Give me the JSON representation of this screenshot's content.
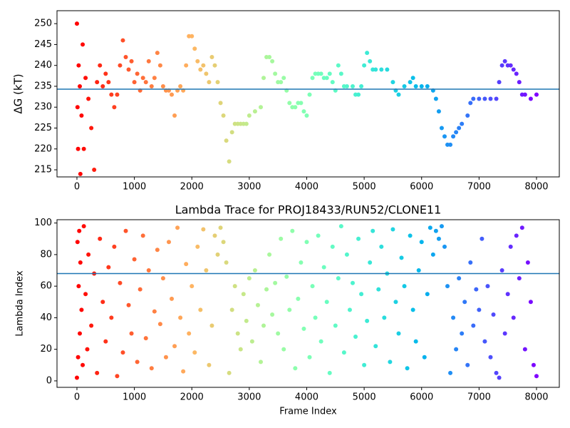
{
  "chart_data": [
    {
      "type": "scatter",
      "ylabel": "ΔG (kT)",
      "colormap": "rainbow_r",
      "hline": 234.3,
      "hline_color": "#1f77b4",
      "xlim": [
        -347,
        8397
      ],
      "ylim": [
        213.3,
        253.1
      ],
      "xticks": [
        0,
        1000,
        2000,
        3000,
        4000,
        5000,
        6000,
        7000,
        8000
      ],
      "yticks": [
        215,
        220,
        225,
        230,
        235,
        240,
        245,
        250
      ],
      "x": [
        0,
        10,
        20,
        30,
        50,
        60,
        80,
        100,
        120,
        150,
        200,
        250,
        300,
        350,
        400,
        450,
        500,
        550,
        600,
        650,
        700,
        750,
        800,
        850,
        900,
        950,
        1000,
        1050,
        1100,
        1150,
        1200,
        1250,
        1300,
        1350,
        1400,
        1450,
        1500,
        1550,
        1600,
        1650,
        1700,
        1750,
        1800,
        1850,
        1900,
        1950,
        2000,
        2050,
        2100,
        2150,
        2200,
        2250,
        2300,
        2350,
        2400,
        2450,
        2500,
        2550,
        2600,
        2650,
        2700,
        2750,
        2800,
        2850,
        2900,
        2950,
        3000,
        3100,
        3200,
        3250,
        3300,
        3350,
        3400,
        3450,
        3500,
        3550,
        3600,
        3650,
        3700,
        3750,
        3800,
        3850,
        3900,
        3950,
        4000,
        4050,
        4100,
        4150,
        4200,
        4250,
        4300,
        4350,
        4400,
        4450,
        4500,
        4550,
        4600,
        4650,
        4700,
        4800,
        4850,
        4900,
        4950,
        5000,
        5050,
        5100,
        5150,
        5200,
        5300,
        5400,
        5500,
        5550,
        5600,
        5700,
        5800,
        5850,
        5900,
        6000,
        6100,
        6200,
        6250,
        6300,
        6350,
        6400,
        6450,
        6500,
        6550,
        6600,
        6650,
        6700,
        6800,
        6850,
        6900,
        7000,
        7100,
        7200,
        7300,
        7350,
        7400,
        7450,
        7500,
        7550,
        7600,
        7650,
        7700,
        7750,
        7800,
        7900,
        8000
      ],
      "values": [
        250,
        230,
        220,
        240,
        235,
        214,
        228,
        245,
        220,
        237,
        232,
        225,
        215,
        236,
        240,
        235,
        238,
        236,
        233,
        230,
        233,
        240,
        246,
        242,
        239,
        241,
        236,
        238,
        234,
        237,
        236,
        241,
        235,
        237,
        243,
        240,
        235,
        234,
        234,
        233,
        228,
        234,
        235,
        234,
        240,
        247,
        247,
        244,
        241,
        239,
        240,
        238,
        236,
        242,
        240,
        236,
        231,
        228,
        222,
        217,
        224,
        226,
        226,
        226,
        226,
        226,
        228,
        229,
        230,
        237,
        242,
        242,
        241,
        238,
        236,
        236,
        237,
        234,
        231,
        230,
        230,
        231,
        231,
        229,
        228,
        233,
        237,
        238,
        238,
        238,
        237,
        237,
        238,
        236,
        234,
        240,
        238,
        235,
        235,
        235,
        233,
        233,
        235,
        240,
        243,
        241,
        239,
        239,
        239,
        239,
        236,
        234,
        233,
        235,
        236,
        237,
        235,
        235,
        235,
        234,
        232,
        229,
        225,
        223,
        221,
        221,
        223,
        224,
        225,
        226,
        228,
        231,
        232,
        232,
        232,
        232,
        232,
        236,
        240,
        241,
        240,
        240,
        239,
        238,
        236,
        233,
        233,
        232,
        233
      ]
    },
    {
      "type": "scatter",
      "title": "Lambda Trace for PROJ18433/RUN52/CLONE11",
      "xlabel": "Frame Index",
      "ylabel": "Lambda Index",
      "colormap": "rainbow_r",
      "hline": 68,
      "hline_color": "#1f77b4",
      "xlim": [
        -347,
        8397
      ],
      "ylim": [
        -4.1,
        102.1
      ],
      "xticks": [
        0,
        1000,
        2000,
        3000,
        4000,
        5000,
        6000,
        7000,
        8000
      ],
      "yticks": [
        0,
        20,
        40,
        60,
        80,
        100
      ],
      "x": [
        0,
        10,
        20,
        30,
        40,
        50,
        60,
        80,
        100,
        120,
        150,
        180,
        200,
        250,
        300,
        350,
        400,
        450,
        500,
        550,
        600,
        650,
        700,
        750,
        800,
        850,
        900,
        950,
        1000,
        1050,
        1100,
        1150,
        1200,
        1250,
        1300,
        1350,
        1400,
        1450,
        1500,
        1550,
        1600,
        1650,
        1700,
        1750,
        1800,
        1850,
        1900,
        1950,
        2000,
        2050,
        2100,
        2150,
        2200,
        2250,
        2300,
        2350,
        2400,
        2450,
        2500,
        2550,
        2600,
        2650,
        2700,
        2750,
        2800,
        2850,
        2900,
        2950,
        3000,
        3050,
        3100,
        3150,
        3200,
        3250,
        3300,
        3350,
        3400,
        3450,
        3500,
        3550,
        3600,
        3650,
        3700,
        3750,
        3800,
        3850,
        3900,
        3950,
        4000,
        4050,
        4100,
        4150,
        4200,
        4250,
        4300,
        4350,
        4400,
        4450,
        4500,
        4550,
        4600,
        4650,
        4700,
        4750,
        4800,
        4850,
        4900,
        4950,
        5000,
        5050,
        5100,
        5150,
        5200,
        5250,
        5300,
        5350,
        5400,
        5450,
        5500,
        5550,
        5600,
        5650,
        5700,
        5750,
        5800,
        5850,
        5900,
        5950,
        6000,
        6050,
        6100,
        6150,
        6200,
        6250,
        6300,
        6350,
        6400,
        6450,
        6500,
        6550,
        6600,
        6650,
        6700,
        6750,
        6800,
        6850,
        6900,
        6950,
        7000,
        7050,
        7100,
        7150,
        7200,
        7250,
        7300,
        7350,
        7400,
        7450,
        7500,
        7550,
        7600,
        7650,
        7700,
        7750,
        7800,
        7850,
        7900,
        7950,
        8000
      ],
      "values": [
        2,
        88,
        15,
        60,
        95,
        30,
        75,
        45,
        10,
        98,
        55,
        20,
        80,
        35,
        68,
        5,
        90,
        50,
        25,
        72,
        40,
        85,
        3,
        62,
        18,
        95,
        48,
        30,
        77,
        12,
        58,
        92,
        27,
        70,
        8,
        44,
        83,
        36,
        65,
        15,
        88,
        52,
        22,
        97,
        40,
        6,
        74,
        30,
        60,
        18,
        85,
        45,
        96,
        70,
        10,
        35,
        92,
        80,
        97,
        88,
        75,
        5,
        45,
        60,
        30,
        20,
        55,
        38,
        65,
        25,
        70,
        48,
        12,
        35,
        58,
        80,
        42,
        62,
        30,
        90,
        20,
        66,
        45,
        95,
        8,
        52,
        75,
        33,
        88,
        15,
        60,
        40,
        92,
        25,
        72,
        50,
        5,
        85,
        35,
        65,
        98,
        18,
        80,
        45,
        62,
        28,
        90,
        55,
        10,
        38,
        75,
        95,
        22,
        58,
        85,
        40,
        68,
        12,
        96,
        50,
        30,
        78,
        60,
        8,
        92,
        45,
        25,
        70,
        88,
        15,
        55,
        97,
        80,
        95,
        90,
        98,
        85,
        60,
        5,
        40,
        20,
        65,
        30,
        50,
        10,
        75,
        35,
        58,
        45,
        90,
        25,
        60,
        15,
        42,
        5,
        2,
        70,
        30,
        55,
        85,
        40,
        92,
        65,
        97,
        20,
        75,
        50,
        10,
        3
      ]
    }
  ]
}
